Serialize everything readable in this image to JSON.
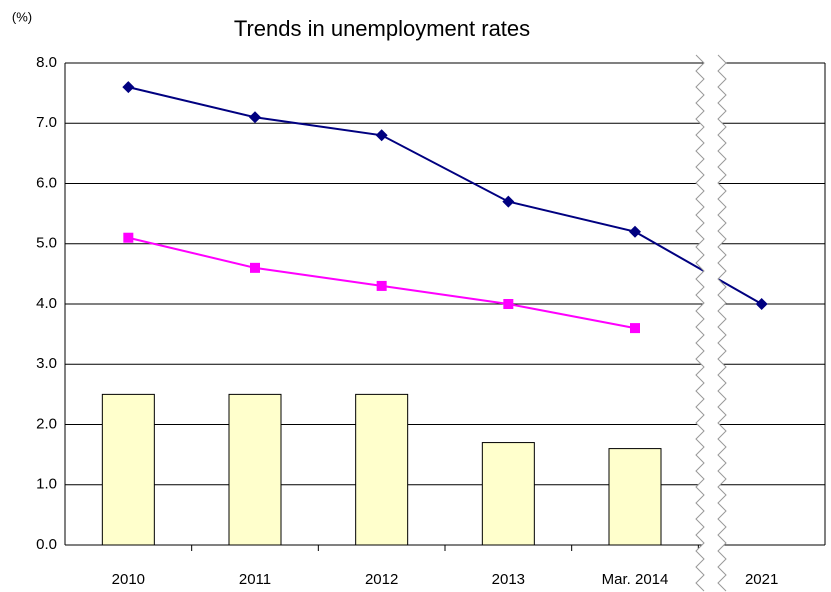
{
  "chart_data": {
    "type": "combo",
    "title": "Trends in unemployment rates",
    "y_label": "(%)",
    "categories": [
      "2010",
      "2011",
      "2012",
      "2013",
      "Mar. 2014",
      "2021"
    ],
    "series": [
      {
        "type": "bar",
        "color": "#ffffcc",
        "values": [
          2.5,
          2.5,
          2.5,
          1.7,
          1.6,
          null
        ]
      },
      {
        "type": "line",
        "marker": "diamond",
        "color": "#000080",
        "values": [
          7.6,
          7.1,
          6.8,
          5.7,
          5.2,
          4.0
        ]
      },
      {
        "type": "line",
        "marker": "square",
        "color": "#ff00ff",
        "values": [
          5.1,
          4.6,
          4.3,
          4.0,
          3.6,
          null
        ]
      }
    ],
    "ylim": [
      0,
      8
    ],
    "yticks": [
      {
        "value": 0,
        "label": "0.0"
      },
      {
        "value": 1,
        "label": "1.0"
      },
      {
        "value": 2,
        "label": "2.0"
      },
      {
        "value": 3,
        "label": "3.0"
      },
      {
        "value": 4,
        "label": "4.0"
      },
      {
        "value": 5,
        "label": "5.0"
      },
      {
        "value": 6,
        "label": "6.0"
      },
      {
        "value": 7,
        "label": "7.0"
      },
      {
        "value": 8,
        "label": "8.0"
      }
    ],
    "grid": true
  }
}
